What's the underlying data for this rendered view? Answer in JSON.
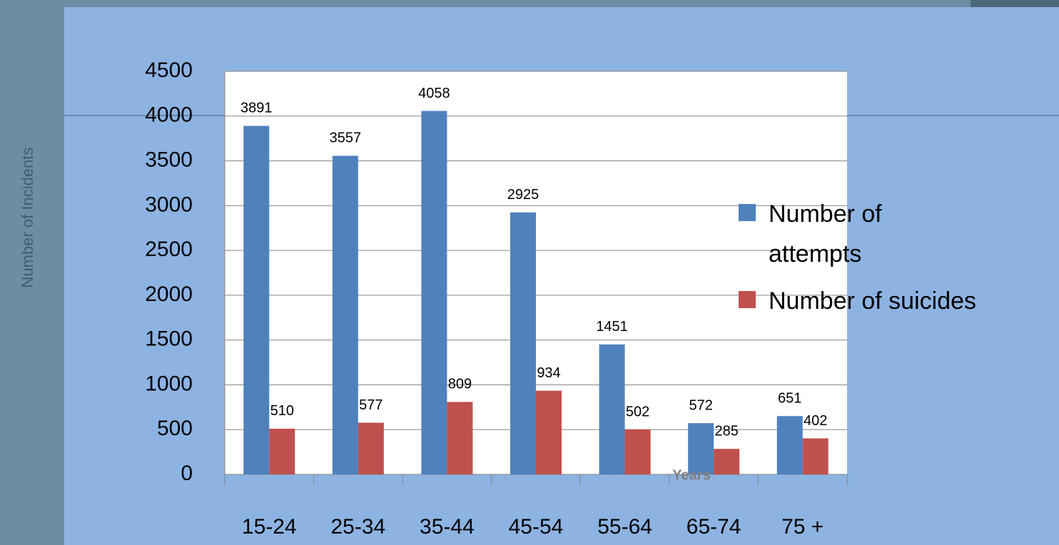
{
  "chart_data": {
    "type": "bar",
    "y_label": "Number of  Incidents",
    "x_label": "Years",
    "categories": [
      "15-24",
      "25-34",
      "35-44",
      "45-54",
      "55-64",
      "65-74",
      "75 +"
    ],
    "series": [
      {
        "name": "Number of attempts",
        "color": "#4f81bd",
        "values": [
          3891,
          3557,
          4058,
          2925,
          1451,
          572,
          651
        ]
      },
      {
        "name": "Number of suicides",
        "color": "#c0504d",
        "values": [
          510,
          577,
          809,
          934,
          502,
          285,
          402
        ]
      }
    ],
    "ylim": [
      0,
      4500
    ],
    "yticks": [
      0,
      500,
      1000,
      1500,
      2000,
      2500,
      3000,
      3500,
      4000,
      4500
    ],
    "grid": true,
    "legend": "right"
  }
}
